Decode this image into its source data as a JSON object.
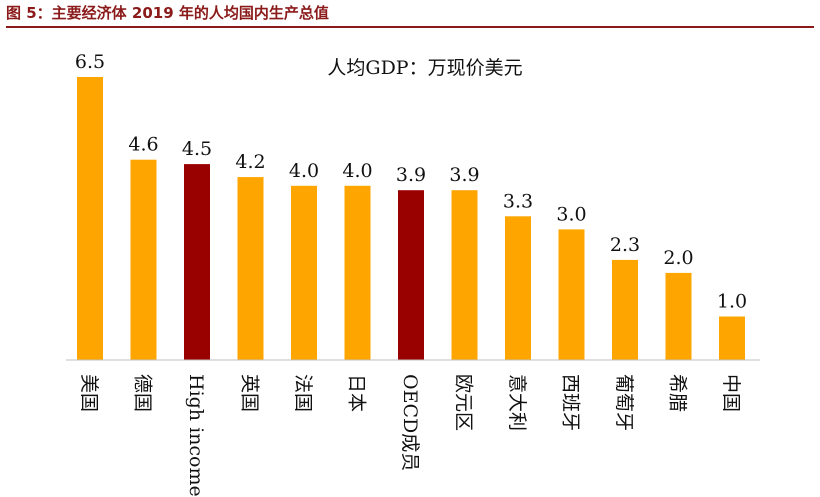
{
  "figure": {
    "title": "图 5：主要经济体 2019 年的人均国内生产总值"
  },
  "chart_data": {
    "type": "bar",
    "title": "人均GDP：万现价美元",
    "categories": [
      "美国",
      "德国",
      "High income",
      "英国",
      "法国",
      "日本",
      "OECD成员",
      "欧元区",
      "意大利",
      "西班牙",
      "葡萄牙",
      "希腊",
      "中国"
    ],
    "values": [
      6.5,
      4.6,
      4.5,
      4.2,
      4.0,
      4.0,
      3.9,
      3.9,
      3.3,
      3.0,
      2.3,
      2.0,
      1.0
    ],
    "value_labels": [
      "6.5",
      "4.6",
      "4.5",
      "4.2",
      "4.0",
      "4.0",
      "3.9",
      "3.9",
      "3.3",
      "3.0",
      "2.3",
      "2.0",
      "1.0"
    ],
    "highlight_categories": [
      "High income",
      "OECD成员"
    ],
    "colors": {
      "bar": "#FFA500",
      "highlight": "#990000",
      "title": "#8B1A1A"
    },
    "ylim": [
      0,
      7
    ],
    "grid": false,
    "legend": "none"
  }
}
